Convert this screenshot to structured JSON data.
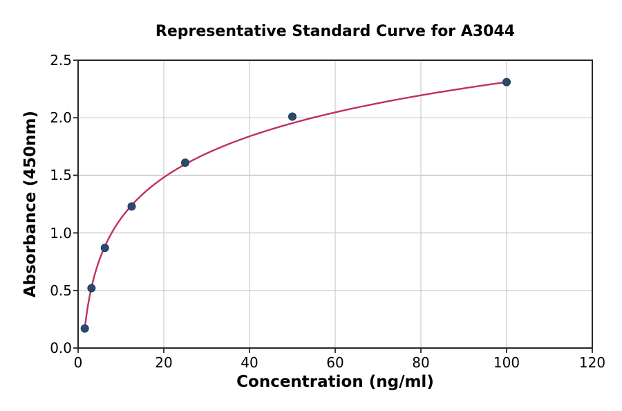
{
  "chart_data": {
    "type": "scatter",
    "title": "Representative Standard Curve for A3044",
    "xlabel": "Concentration (ng/ml)",
    "ylabel": "Absorbance (450nm)",
    "xlim": [
      0,
      120
    ],
    "ylim": [
      0,
      2.5
    ],
    "x_ticks": [
      0,
      20,
      40,
      60,
      80,
      100,
      120
    ],
    "y_ticks": [
      0.0,
      0.5,
      1.0,
      1.5,
      2.0,
      2.5
    ],
    "grid": true,
    "points": [
      {
        "x": 1.5625,
        "y": 0.17
      },
      {
        "x": 3.125,
        "y": 0.52
      },
      {
        "x": 6.25,
        "y": 0.87
      },
      {
        "x": 12.5,
        "y": 1.23
      },
      {
        "x": 25,
        "y": 1.61
      },
      {
        "x": 50,
        "y": 2.01
      },
      {
        "x": 100,
        "y": 2.31
      }
    ],
    "fit_curve": {
      "type": "logarithmic",
      "equation": "y = a*ln(x) + b",
      "a": 0.5145,
      "b": -0.0595,
      "x_start": 1.5625,
      "x_end": 100
    },
    "colors": {
      "curve": "#c02f62",
      "marker": "#2b4a6e",
      "marker_edge": "#1e3a5c",
      "grid": "#cccccc",
      "spine": "#262626",
      "text": "#000000",
      "background": "#ffffff"
    }
  }
}
